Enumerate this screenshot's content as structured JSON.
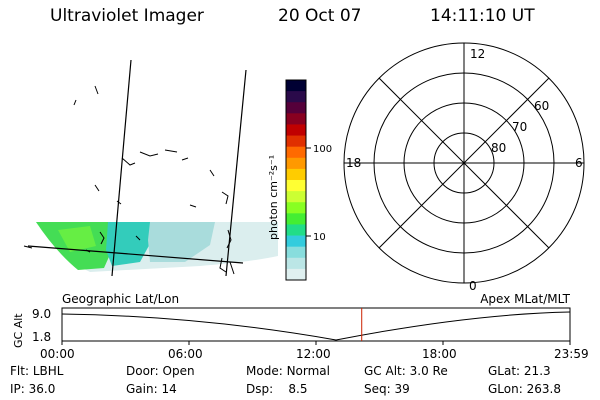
{
  "header": {
    "instrument": "Ultraviolet Imager",
    "date": "20 Oct 07",
    "time": "14:11:10 UT"
  },
  "colorbar": {
    "label": "photon cm⁻²s⁻¹",
    "ticks": [
      "100",
      "10"
    ],
    "colors": [
      "#000033",
      "#2a0a4a",
      "#55003a",
      "#880020",
      "#c00000",
      "#e03000",
      "#ff6a00",
      "#ff9900",
      "#ffcc00",
      "#ffff33",
      "#ccff33",
      "#88ff22",
      "#44ee33",
      "#22dd88",
      "#33ccdd",
      "#88dddd",
      "#bbe6e6",
      "#dff0f0"
    ]
  },
  "polar_plot": {
    "mlt_labels": [
      "12",
      "18",
      "6",
      "0"
    ],
    "lat_labels": [
      "60",
      "70",
      "80"
    ]
  },
  "timeline": {
    "left_label": "Geographic Lat/Lon",
    "right_label": "Apex MLat/MLT",
    "axis_label": "GC Alt",
    "y_ticks": [
      "9.0",
      "1.8"
    ],
    "x_ticks": [
      "00:00",
      "06:00",
      "12:00",
      "18:00",
      "23:59"
    ],
    "current_time_fraction": 0.59,
    "marker_color": "#cc2200"
  },
  "status": {
    "flt_label": "Flt:",
    "flt_value": "LBHL",
    "door_label": "Door:",
    "door_value": "Open",
    "mode_label": "Mode:",
    "mode_value": "Normal",
    "gcalt_label": "GC Alt:",
    "gcalt_value": "3.0 Re",
    "glat_label": "GLat:",
    "glat_value": "21.3",
    "ip_label": "IP:",
    "ip_value": "36.0",
    "gain_label": "Gain:",
    "gain_value": "14",
    "dsp_label": "Dsp:",
    "dsp_value": "8.5",
    "seq_label": "Seq:",
    "seq_value": "39",
    "glon_label": "GLon:",
    "glon_value": "263.8"
  }
}
